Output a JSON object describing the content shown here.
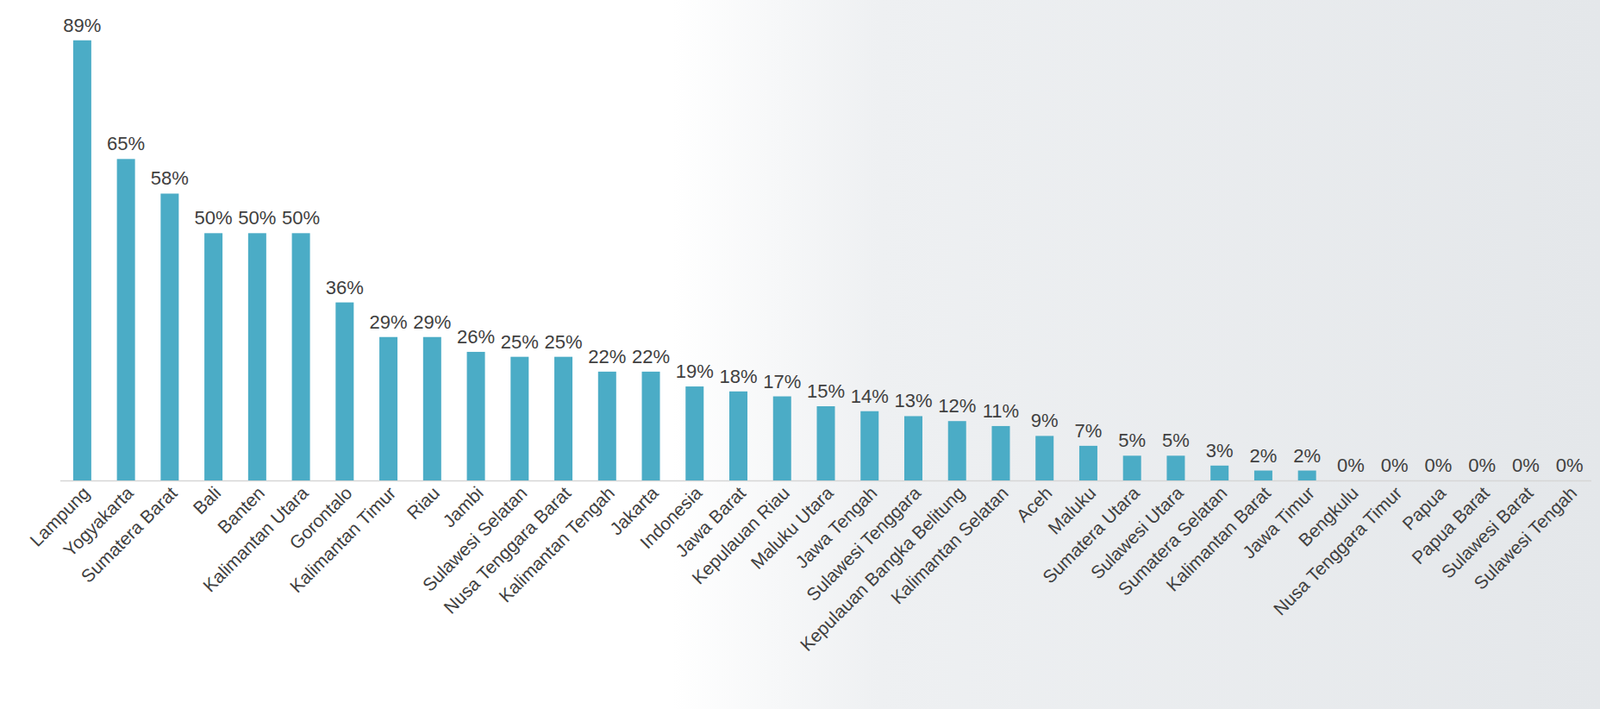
{
  "chart_data": {
    "type": "bar",
    "categories": [
      "Lampung",
      "Yogyakarta",
      "Sumatera Barat",
      "Bali",
      "Banten",
      "Kalimantan Utara",
      "Gorontalo",
      "Kalimantan Timur",
      "Riau",
      "Jambi",
      "Sulawesi Selatan",
      "Nusa Tenggara Barat",
      "Kalimantan Tengah",
      "Jakarta",
      "Indonesia",
      "Jawa Barat",
      "Kepulauan Riau",
      "Maluku Utara",
      "Jawa Tengah",
      "Sulawesi Tenggara",
      "Kepulauan Bangka Belitung",
      "Kalimantan Selatan",
      "Aceh",
      "Maluku",
      "Sumatera Utara",
      "Sulawesi Utara",
      "Sumatera Selatan",
      "Kalimantan Barat",
      "Jawa Timur",
      "Bengkulu",
      "Nusa Tenggara Timur",
      "Papua",
      "Papua Barat",
      "Sulawesi Barat",
      "Sulawesi Tengah"
    ],
    "values": [
      89,
      65,
      58,
      50,
      50,
      50,
      36,
      29,
      29,
      26,
      25,
      25,
      22,
      22,
      19,
      18,
      17,
      15,
      14,
      13,
      12,
      11,
      9,
      7,
      5,
      5,
      3,
      2,
      2,
      0,
      0,
      0,
      0,
      0,
      0
    ],
    "value_labels": [
      "89%",
      "65%",
      "58%",
      "50%",
      "50%",
      "50%",
      "36%",
      "29%",
      "29%",
      "26%",
      "25%",
      "25%",
      "22%",
      "22%",
      "19%",
      "18%",
      "17%",
      "15%",
      "14%",
      "13%",
      "12%",
      "11%",
      "9%",
      "7%",
      "5%",
      "5%",
      "3%",
      "2%",
      "2%",
      "0%",
      "0%",
      "0%",
      "0%",
      "0%",
      "0%"
    ],
    "color": "#4bacc6",
    "ylim": [
      0,
      90
    ],
    "grid": false,
    "data_labels": true,
    "tick_labels": "x"
  }
}
